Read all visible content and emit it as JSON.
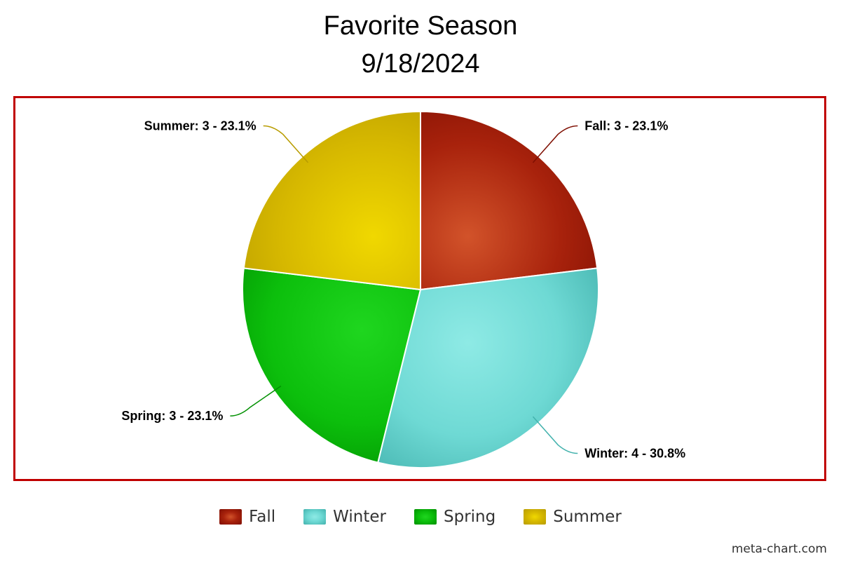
{
  "chart_data": {
    "type": "pie",
    "title": "Favorite Season",
    "subtitle": "9/18/2024",
    "slices": [
      {
        "name": "Fall",
        "value": 3,
        "percent": "23.1%",
        "label": "Fall: 3 - 23.1%",
        "color": "#a8220c",
        "light": "#d2532a",
        "dark": "#7f0f02"
      },
      {
        "name": "Winter",
        "value": 4,
        "percent": "30.8%",
        "label": "Winter: 4 - 30.8%",
        "color": "#6ed9d4",
        "light": "#8eeae5",
        "dark": "#43b2ad"
      },
      {
        "name": "Spring",
        "value": 3,
        "percent": "23.1%",
        "label": "Spring: 3 - 23.1%",
        "color": "#0cbf0c",
        "light": "#1fd61f",
        "dark": "#009000"
      },
      {
        "name": "Summer",
        "value": 3,
        "percent": "23.1%",
        "label": "Summer: 3 - 23.1%",
        "color": "#d6b800",
        "light": "#f0d800",
        "dark": "#b89c00"
      }
    ],
    "legend_position": "bottom"
  },
  "credit": "meta-chart.com"
}
